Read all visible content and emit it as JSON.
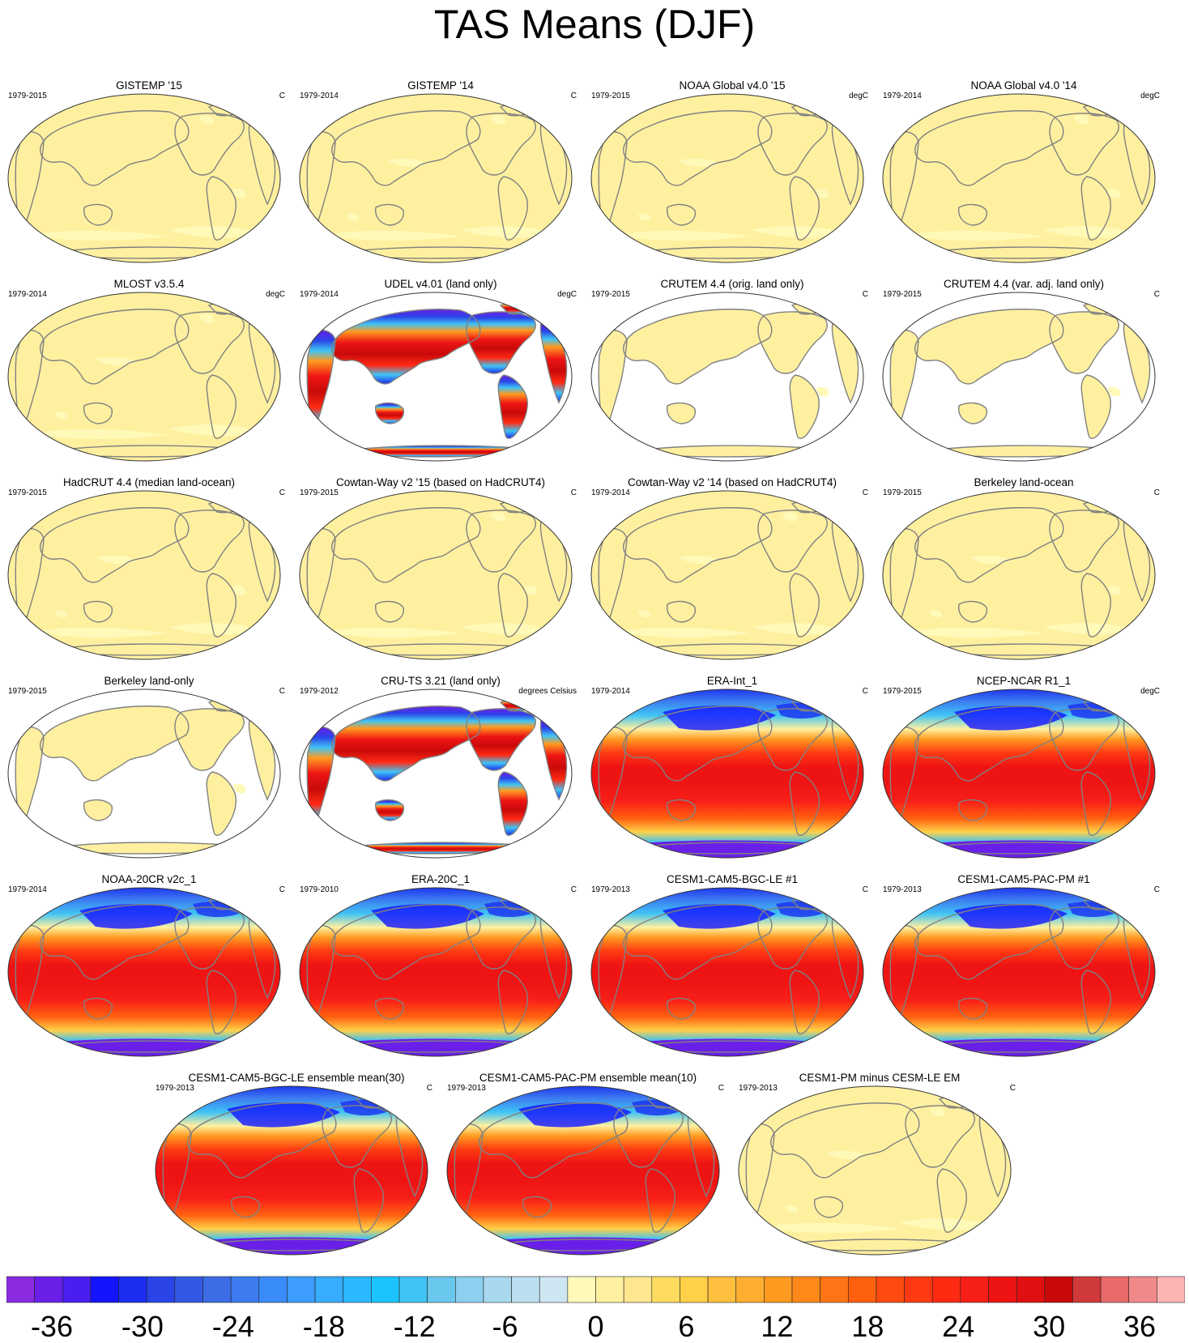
{
  "figure": {
    "title": "TAS Means (DJF)"
  },
  "chart_data": {
    "type": "heatmap",
    "title": "TAS Means (DJF)",
    "projection": "Robinson world map, Pacific-centered, with continent outlines",
    "panels": [
      {
        "title": "GISTEMP '15",
        "years": "1979-2015",
        "units": "C",
        "style": "anomaly"
      },
      {
        "title": "GISTEMP '14",
        "years": "1979-2014",
        "units": "C",
        "style": "anomaly"
      },
      {
        "title": "NOAA Global v4.0 '15",
        "years": "1979-2015",
        "units": "degC",
        "style": "anomaly"
      },
      {
        "title": "NOAA Global v4.0 '14",
        "years": "1979-2014",
        "units": "degC",
        "style": "anomaly"
      },
      {
        "title": "MLOST v3.5.4",
        "years": "1979-2014",
        "units": "degC",
        "style": "anomaly"
      },
      {
        "title": "UDEL v4.01 (land only)",
        "years": "1979-2014",
        "units": "degC",
        "style": "land-abs"
      },
      {
        "title": "CRUTEM 4.4 (orig. land only)",
        "years": "1979-2015",
        "units": "C",
        "style": "land-anomaly"
      },
      {
        "title": "CRUTEM 4.4 (var. adj. land only)",
        "years": "1979-2015",
        "units": "C",
        "style": "land-anomaly"
      },
      {
        "title": "HadCRUT 4.4 (median land-ocean)",
        "years": "1979-2015",
        "units": "C",
        "style": "anomaly"
      },
      {
        "title": "Cowtan-Way v2 '15 (based on HadCRUT4)",
        "years": "1979-2015",
        "units": "C",
        "style": "anomaly"
      },
      {
        "title": "Cowtan-Way v2 '14 (based on HadCRUT4)",
        "years": "1979-2014",
        "units": "C",
        "style": "anomaly"
      },
      {
        "title": "Berkeley land-ocean",
        "years": "1979-2015",
        "units": "C",
        "style": "anomaly"
      },
      {
        "title": "Berkeley land-only",
        "years": "1979-2015",
        "units": "C",
        "style": "land-anomaly"
      },
      {
        "title": "CRU-TS 3.21 (land only)",
        "years": "1979-2012",
        "units": "degrees Celsius",
        "style": "land-abs"
      },
      {
        "title": "ERA-Int_1",
        "years": "1979-2014",
        "units": "C",
        "style": "full"
      },
      {
        "title": "NCEP-NCAR R1_1",
        "years": "1979-2015",
        "units": "degC",
        "style": "full"
      },
      {
        "title": "NOAA-20CR v2c_1",
        "years": "1979-2014",
        "units": "C",
        "style": "full"
      },
      {
        "title": "ERA-20C_1",
        "years": "1979-2010",
        "units": "C",
        "style": "full"
      },
      {
        "title": "CESM1-CAM5-BGC-LE #1",
        "years": "1979-2013",
        "units": "C",
        "style": "full"
      },
      {
        "title": "CESM1-CAM5-PAC-PM #1",
        "years": "1979-2013",
        "units": "C",
        "style": "full"
      },
      {
        "title": "CESM1-CAM5-BGC-LE ensemble mean(30)",
        "years": "1979-2013",
        "units": "C",
        "style": "full"
      },
      {
        "title": "CESM1-CAM5-PAC-PM ensemble mean(10)",
        "years": "1979-2013",
        "units": "C",
        "style": "full"
      },
      {
        "title": "CESM1-PM minus CESM-LE EM",
        "years": "1979-2013",
        "units": "C",
        "style": "anomaly"
      }
    ],
    "colorbar": {
      "levels": [
        -39,
        -37.5,
        -36,
        -34.5,
        -33,
        -31.5,
        -30,
        -28.5,
        -27,
        -25.5,
        -24,
        -22.5,
        -21,
        -19.5,
        -18,
        -16.5,
        -15,
        -13.5,
        -12,
        -10.5,
        -9,
        -7.5,
        -6,
        -4.5,
        -3,
        -1.5,
        0,
        1.5,
        3,
        4.5,
        6,
        7.5,
        9,
        10.5,
        12,
        13.5,
        15,
        16.5,
        18,
        19.5,
        21,
        22.5,
        24,
        25.5,
        27,
        28.5,
        30,
        31.5,
        33,
        34.5,
        36,
        37.5,
        39
      ],
      "tick_values": [
        -36,
        -30,
        -24,
        -18,
        -12,
        -6,
        0,
        6,
        12,
        18,
        24,
        30,
        36
      ],
      "tick_labels": [
        "-36",
        "-30",
        "-24",
        "-18",
        "-12",
        "-6",
        "0",
        "6",
        "12",
        "18",
        "24",
        "30",
        "36"
      ],
      "colors": [
        "#8a2be2",
        "#6a1fe8",
        "#4a1ef0",
        "#1414ff",
        "#1c2ef0",
        "#2a44e8",
        "#3458e4",
        "#3c6ce6",
        "#3c7cf0",
        "#3a8cf8",
        "#3c9cff",
        "#38acff",
        "#2ab8ff",
        "#1cc4ff",
        "#40c4f4",
        "#6ac8ee",
        "#8ccfee",
        "#a8d8ee",
        "#bcdff0",
        "#cde6f2",
        "#fffab8",
        "#fff0a0",
        "#ffe690",
        "#ffdc60",
        "#ffd048",
        "#ffc040",
        "#ffae30",
        "#ff9a20",
        "#ff8818",
        "#ff7414",
        "#ff6010",
        "#ff4a10",
        "#ff3a12",
        "#ff2a12",
        "#f81e18",
        "#ee1414",
        "#e01010",
        "#c80a0a",
        "#d03a3a",
        "#e86a6a",
        "#f08a8a",
        "#ffb4b4"
      ]
    }
  }
}
